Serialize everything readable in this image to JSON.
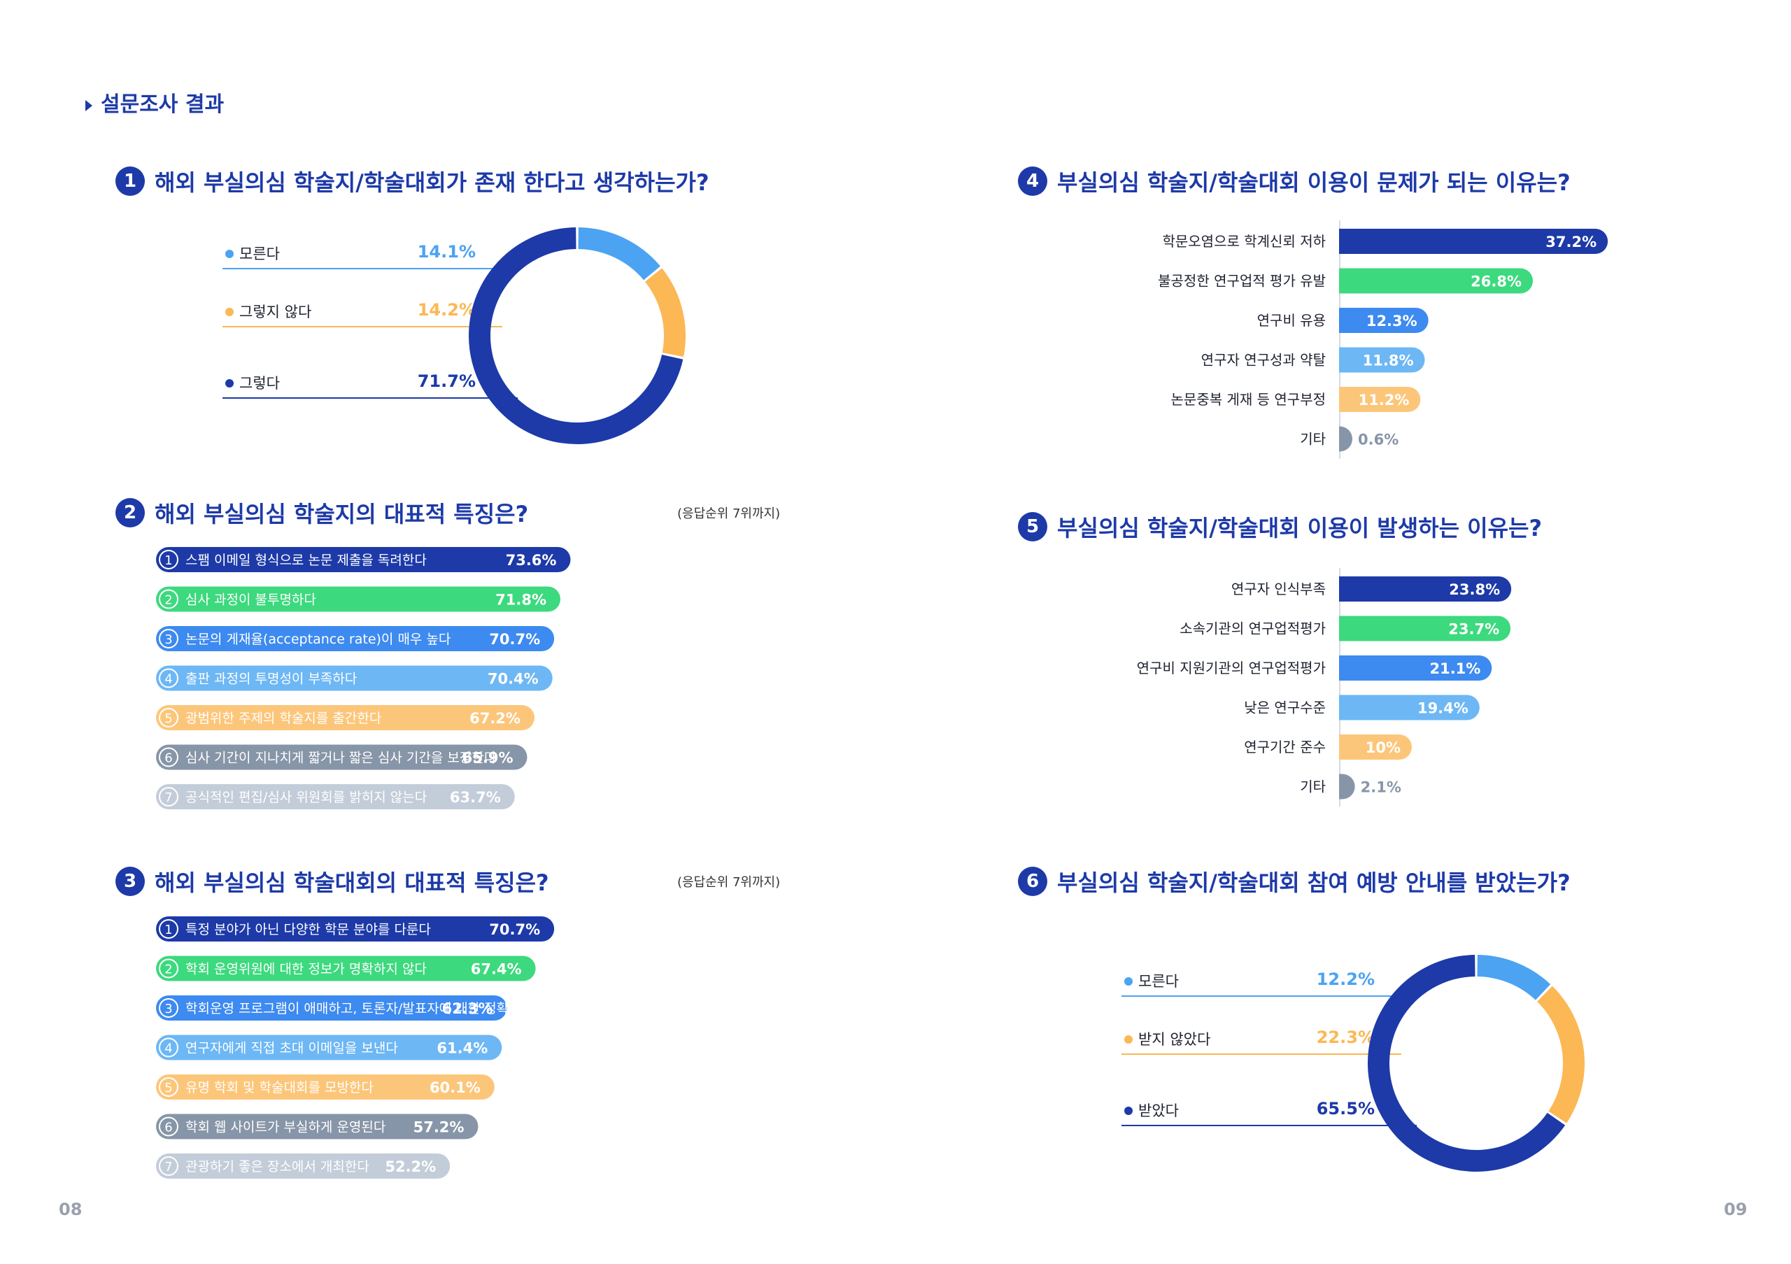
{
  "header": {
    "section_title": "설문조사 결과"
  },
  "page_numbers": {
    "left": "08",
    "right": "09"
  },
  "colors": {
    "navy": "#1d3aa8",
    "green": "#3dd97e",
    "blue": "#3d8af0",
    "lightblue": "#6db7f5",
    "orange": "#fcc67a",
    "gray": "#8795a8",
    "lightgray": "#c3cdd9"
  },
  "q1": {
    "num": "1",
    "title": "해외 부실의심 학술지/학술대회가 존재 한다고 생각하는가?"
  },
  "q2": {
    "num": "2",
    "title": "해외 부실의심 학술지의 대표적 특징은?",
    "note": "(응답순위 7위까지)"
  },
  "q3": {
    "num": "3",
    "title": "해외 부실의심 학술대회의 대표적 특징은?",
    "note": "(응답순위 7위까지)"
  },
  "q4": {
    "num": "4",
    "title": "부실의심 학술지/학술대회 이용이 문제가 되는 이유는?"
  },
  "q5": {
    "num": "5",
    "title": "부실의심 학술지/학술대회 이용이 발생하는 이유는?"
  },
  "q6": {
    "num": "6",
    "title": "부실의심 학술지/학술대회 참여 예방 안내를 받았는가?"
  },
  "chart_data": [
    {
      "id": "q1",
      "type": "pie",
      "donut": true,
      "slices": [
        {
          "label": "모른다",
          "value": 14.1,
          "display": "14.1%",
          "color": "#4ba3f2"
        },
        {
          "label": "그렇지 않다",
          "value": 14.2,
          "display": "14.2%",
          "color": "#fbb854"
        },
        {
          "label": "그렇다",
          "value": 71.7,
          "display": "71.7%",
          "color": "#1d3aa8"
        }
      ]
    },
    {
      "id": "q2",
      "type": "bar",
      "orientation": "horizontal",
      "numbered": true,
      "xlim": [
        0,
        100
      ],
      "categories": [
        "스팸 이메일 형식으로 논문 제출을 독려한다",
        "심사 과정이 불투명하다",
        "논문의 게재율(acceptance rate)이 매우 높다",
        "출판 과정의 투명성이 부족하다",
        "광범위한 주제의 학술지를 출간한다",
        "심사 기간이 지나치게 짧거나 짧은 심사 기간을 보장한다",
        "공식적인 편집/심사 위원회를 밝히지 않는다"
      ],
      "values": [
        73.6,
        71.8,
        70.7,
        70.4,
        67.2,
        65.9,
        63.7
      ],
      "labels": [
        "73.6%",
        "71.8%",
        "70.7%",
        "70.4%",
        "67.2%",
        "65.9%",
        "63.7%"
      ],
      "colors": [
        "#1d3aa8",
        "#3dd97e",
        "#3d8af0",
        "#6db7f5",
        "#fcc67a",
        "#8795a8",
        "#c3cdd9"
      ]
    },
    {
      "id": "q3",
      "type": "bar",
      "orientation": "horizontal",
      "numbered": true,
      "xlim": [
        0,
        100
      ],
      "categories": [
        "특정 분야가 아닌 다양한 학문 분야를 다룬다",
        "학회 운영위원에 대한 정보가 명확하지 않다",
        "학회운영 프로그램이 애매하고, 토론자/발표자에 대한 정확한 정보가 없다",
        "연구자에게 직접 초대 이메일을 보낸다",
        "유명 학회 및 학술대회를 모방한다",
        "학회 웹 사이트가 부실하게 운영된다",
        "관광하기 좋은 장소에서 개최한다"
      ],
      "values": [
        70.7,
        67.4,
        62.3,
        61.4,
        60.1,
        57.2,
        52.2
      ],
      "labels": [
        "70.7%",
        "67.4%",
        "62.3%",
        "61.4%",
        "60.1%",
        "57.2%",
        "52.2%"
      ],
      "colors": [
        "#1d3aa8",
        "#3dd97e",
        "#3d8af0",
        "#6db7f5",
        "#fcc67a",
        "#8795a8",
        "#c3cdd9"
      ]
    },
    {
      "id": "q4",
      "type": "bar",
      "orientation": "horizontal",
      "xlim": [
        0,
        40
      ],
      "categories": [
        "학문오염으로 학계신뢰 저하",
        "불공정한 연구업적 평가 유발",
        "연구비 유용",
        "연구자 연구성과 약탈",
        "논문중복 게재 등 연구부정",
        "기타"
      ],
      "values": [
        37.2,
        26.8,
        12.3,
        11.8,
        11.2,
        0.6
      ],
      "labels": [
        "37.2%",
        "26.8%",
        "12.3%",
        "11.8%",
        "11.2%",
        "0.6%"
      ],
      "colors": [
        "#1d3aa8",
        "#3dd97e",
        "#3d8af0",
        "#6db7f5",
        "#fcc67a",
        "#8795a8"
      ]
    },
    {
      "id": "q5",
      "type": "bar",
      "orientation": "horizontal",
      "xlim": [
        0,
        40
      ],
      "categories": [
        "연구자 인식부족",
        "소속기관의 연구업적평가",
        "연구비 지원기관의 연구업적평가",
        "낮은 연구수준",
        "연구기간 준수",
        "기타"
      ],
      "values": [
        23.8,
        23.7,
        21.1,
        19.4,
        10,
        2.1
      ],
      "labels": [
        "23.8%",
        "23.7%",
        "21.1%",
        "19.4%",
        "10%",
        "2.1%"
      ],
      "colors": [
        "#1d3aa8",
        "#3dd97e",
        "#3d8af0",
        "#6db7f5",
        "#fcc67a",
        "#8795a8"
      ]
    },
    {
      "id": "q6",
      "type": "pie",
      "donut": true,
      "slices": [
        {
          "label": "모른다",
          "value": 12.2,
          "display": "12.2%",
          "color": "#4ba3f2"
        },
        {
          "label": "받지 않았다",
          "value": 22.3,
          "display": "22.3%",
          "color": "#fbb854"
        },
        {
          "label": "받았다",
          "value": 65.5,
          "display": "65.5%",
          "color": "#1d3aa8"
        }
      ]
    }
  ]
}
